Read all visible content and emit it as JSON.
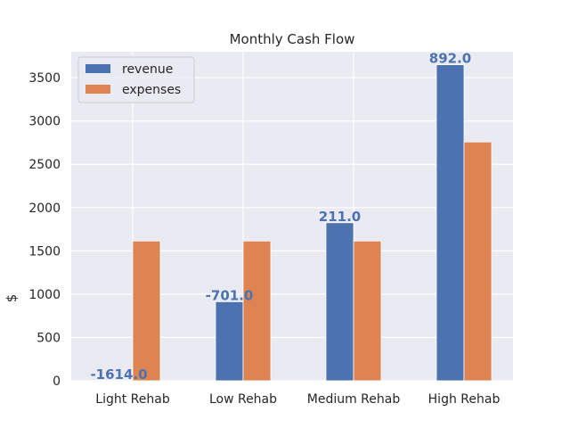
{
  "chart_data": {
    "type": "bar",
    "title": "Monthly Cash Flow",
    "xlabel": "",
    "ylabel": "$",
    "ylim": [
      0,
      3800
    ],
    "yticks": [
      0,
      500,
      1000,
      1500,
      2000,
      2500,
      3000,
      3500
    ],
    "grid": true,
    "legend_position": "top-left",
    "categories": [
      "Light Rehab",
      "Low Rehab",
      "Medium Rehab",
      "High Rehab"
    ],
    "series": [
      {
        "name": "revenue",
        "color": "#4c72b0",
        "values": [
          0,
          913,
          1825,
          3650
        ]
      },
      {
        "name": "expenses",
        "color": "#dd8452",
        "values": [
          1614,
          1614,
          1614,
          2758
        ]
      }
    ],
    "data_labels": [
      "-1614.0",
      "-701.0",
      "211.0",
      "892.0"
    ],
    "data_label_color": "#4c72b0"
  }
}
